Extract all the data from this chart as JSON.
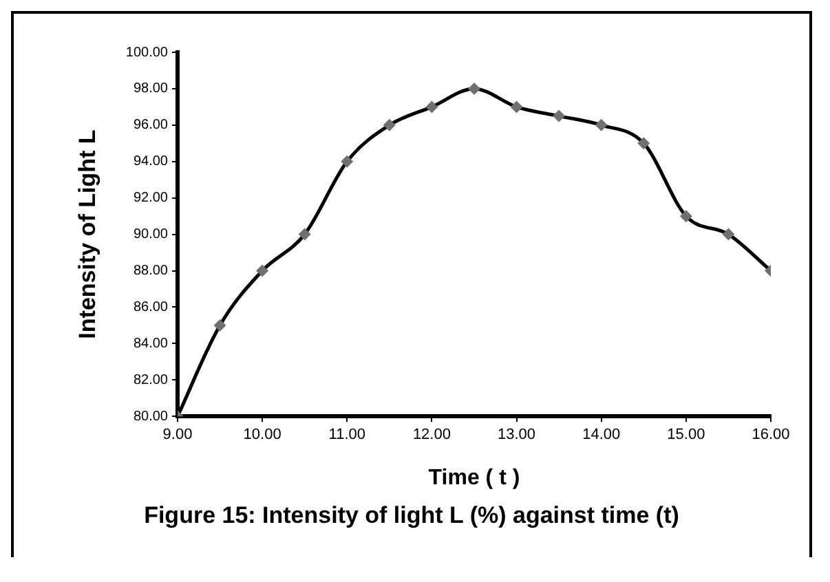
{
  "chart_data": {
    "type": "line",
    "xlabel": "Time ( t )",
    "ylabel": "Intensity of Light L",
    "x": [
      9,
      9.5,
      10,
      10.5,
      11,
      11.5,
      12,
      12.5,
      13,
      13.5,
      14,
      14.5,
      15,
      15.5,
      16
    ],
    "series": [
      {
        "color": "#000000",
        "values": [
          80,
          85,
          88,
          90,
          94,
          96,
          97,
          98,
          97,
          96.5,
          96,
          95,
          91,
          90,
          88
        ]
      }
    ],
    "xlim": [
      9,
      16
    ],
    "xticks": [
      {
        "value": 9,
        "label": "9.00"
      },
      {
        "value": 10,
        "label": "10.00"
      },
      {
        "value": 11,
        "label": "11.00"
      },
      {
        "value": 12,
        "label": "12.00"
      },
      {
        "value": 13,
        "label": "13.00"
      },
      {
        "value": 14,
        "label": "14.00"
      },
      {
        "value": 15,
        "label": "15.00"
      },
      {
        "value": 16,
        "label": "16.00"
      }
    ],
    "ylim": [
      80,
      100
    ],
    "yticks": [
      {
        "value": 80,
        "label": "80.00"
      },
      {
        "value": 82,
        "label": "82.00"
      },
      {
        "value": 84,
        "label": "84.00"
      },
      {
        "value": 86,
        "label": "86.00"
      },
      {
        "value": 88,
        "label": "88.00"
      },
      {
        "value": 90,
        "label": "90.00"
      },
      {
        "value": 92,
        "label": "92.00"
      },
      {
        "value": 94,
        "label": "94.00"
      },
      {
        "value": 96,
        "label": "96.00"
      },
      {
        "value": 98,
        "label": "98.00"
      },
      {
        "value": 100,
        "label": "100.00"
      }
    ],
    "marker": "diamond",
    "grid": false,
    "legend": false,
    "annotations": [
      "Figure 15: Intensity of light L (%) against time (t)"
    ]
  }
}
